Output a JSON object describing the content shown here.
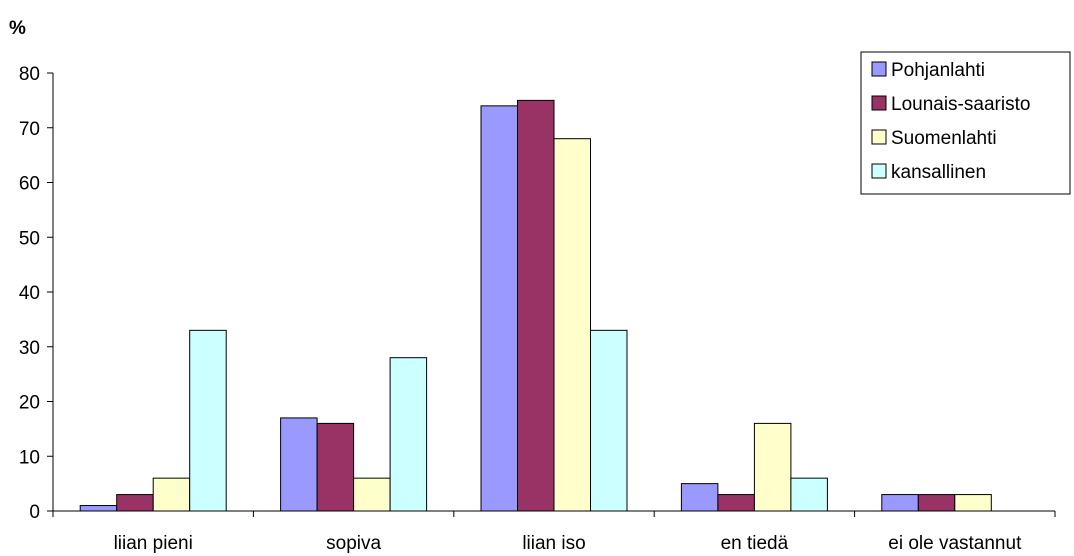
{
  "chart_data": {
    "type": "bar",
    "title": "",
    "xlabel": "",
    "ylabel": "%",
    "ylim": [
      0,
      80
    ],
    "yticks": [
      0,
      10,
      20,
      30,
      40,
      50,
      60,
      70,
      80
    ],
    "grid": false,
    "legend_position": "top-right",
    "categories": [
      "liian pieni",
      "sopiva",
      "liian iso",
      "en tiedä",
      "ei ole vastannut"
    ],
    "series": [
      {
        "name": "Pohjanlahti",
        "color": "#9999ff",
        "values": [
          1,
          17,
          74,
          5,
          3
        ]
      },
      {
        "name": "Lounais-saaristo",
        "color": "#993366",
        "values": [
          3,
          16,
          75,
          3,
          3
        ]
      },
      {
        "name": "Suomenlahti",
        "color": "#ffffcc",
        "values": [
          6,
          6,
          68,
          16,
          3
        ]
      },
      {
        "name": "kansallinen",
        "color": "#ccffff",
        "values": [
          33,
          28,
          33,
          6,
          0
        ]
      }
    ]
  }
}
